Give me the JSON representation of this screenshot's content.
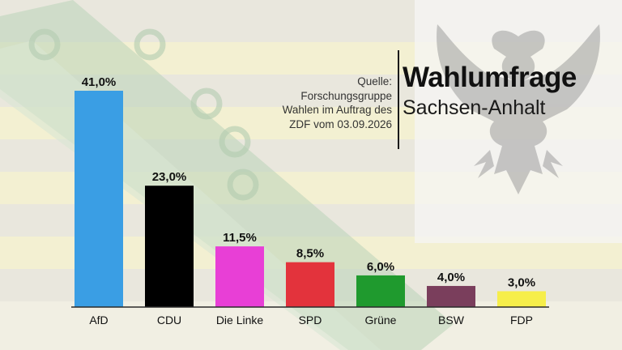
{
  "header": {
    "title": "Wahlumfrage",
    "subtitle": "Sachsen-Anhalt",
    "source_lines": [
      "Quelle:",
      "Forschungsgruppe",
      "Wahlen im Auftrag des",
      "ZDF vom 03.09.2026"
    ]
  },
  "background": {
    "description_icon": "eagle-coat-of-arms-icon",
    "stripe_colors": [
      "#e9e6d4",
      "#f4f0c6"
    ]
  },
  "chart_data": {
    "type": "bar",
    "categories": [
      "AfD",
      "CDU",
      "Die Linke",
      "SPD",
      "Grüne",
      "BSW",
      "FDP"
    ],
    "values": [
      41.0,
      23.0,
      11.5,
      8.5,
      6.0,
      4.0,
      3.0
    ],
    "data_labels": [
      "41,0%",
      "23,0%",
      "11,5%",
      "8,5%",
      "6,0%",
      "4,0%",
      "3,0%"
    ],
    "colors": [
      "#3a9ee4",
      "#000000",
      "#e83fd6",
      "#e3333c",
      "#1f9a2e",
      "#7a3e5c",
      "#f6ee4a"
    ],
    "ylim": [
      0,
      41
    ],
    "grid": false,
    "legend": "none"
  }
}
